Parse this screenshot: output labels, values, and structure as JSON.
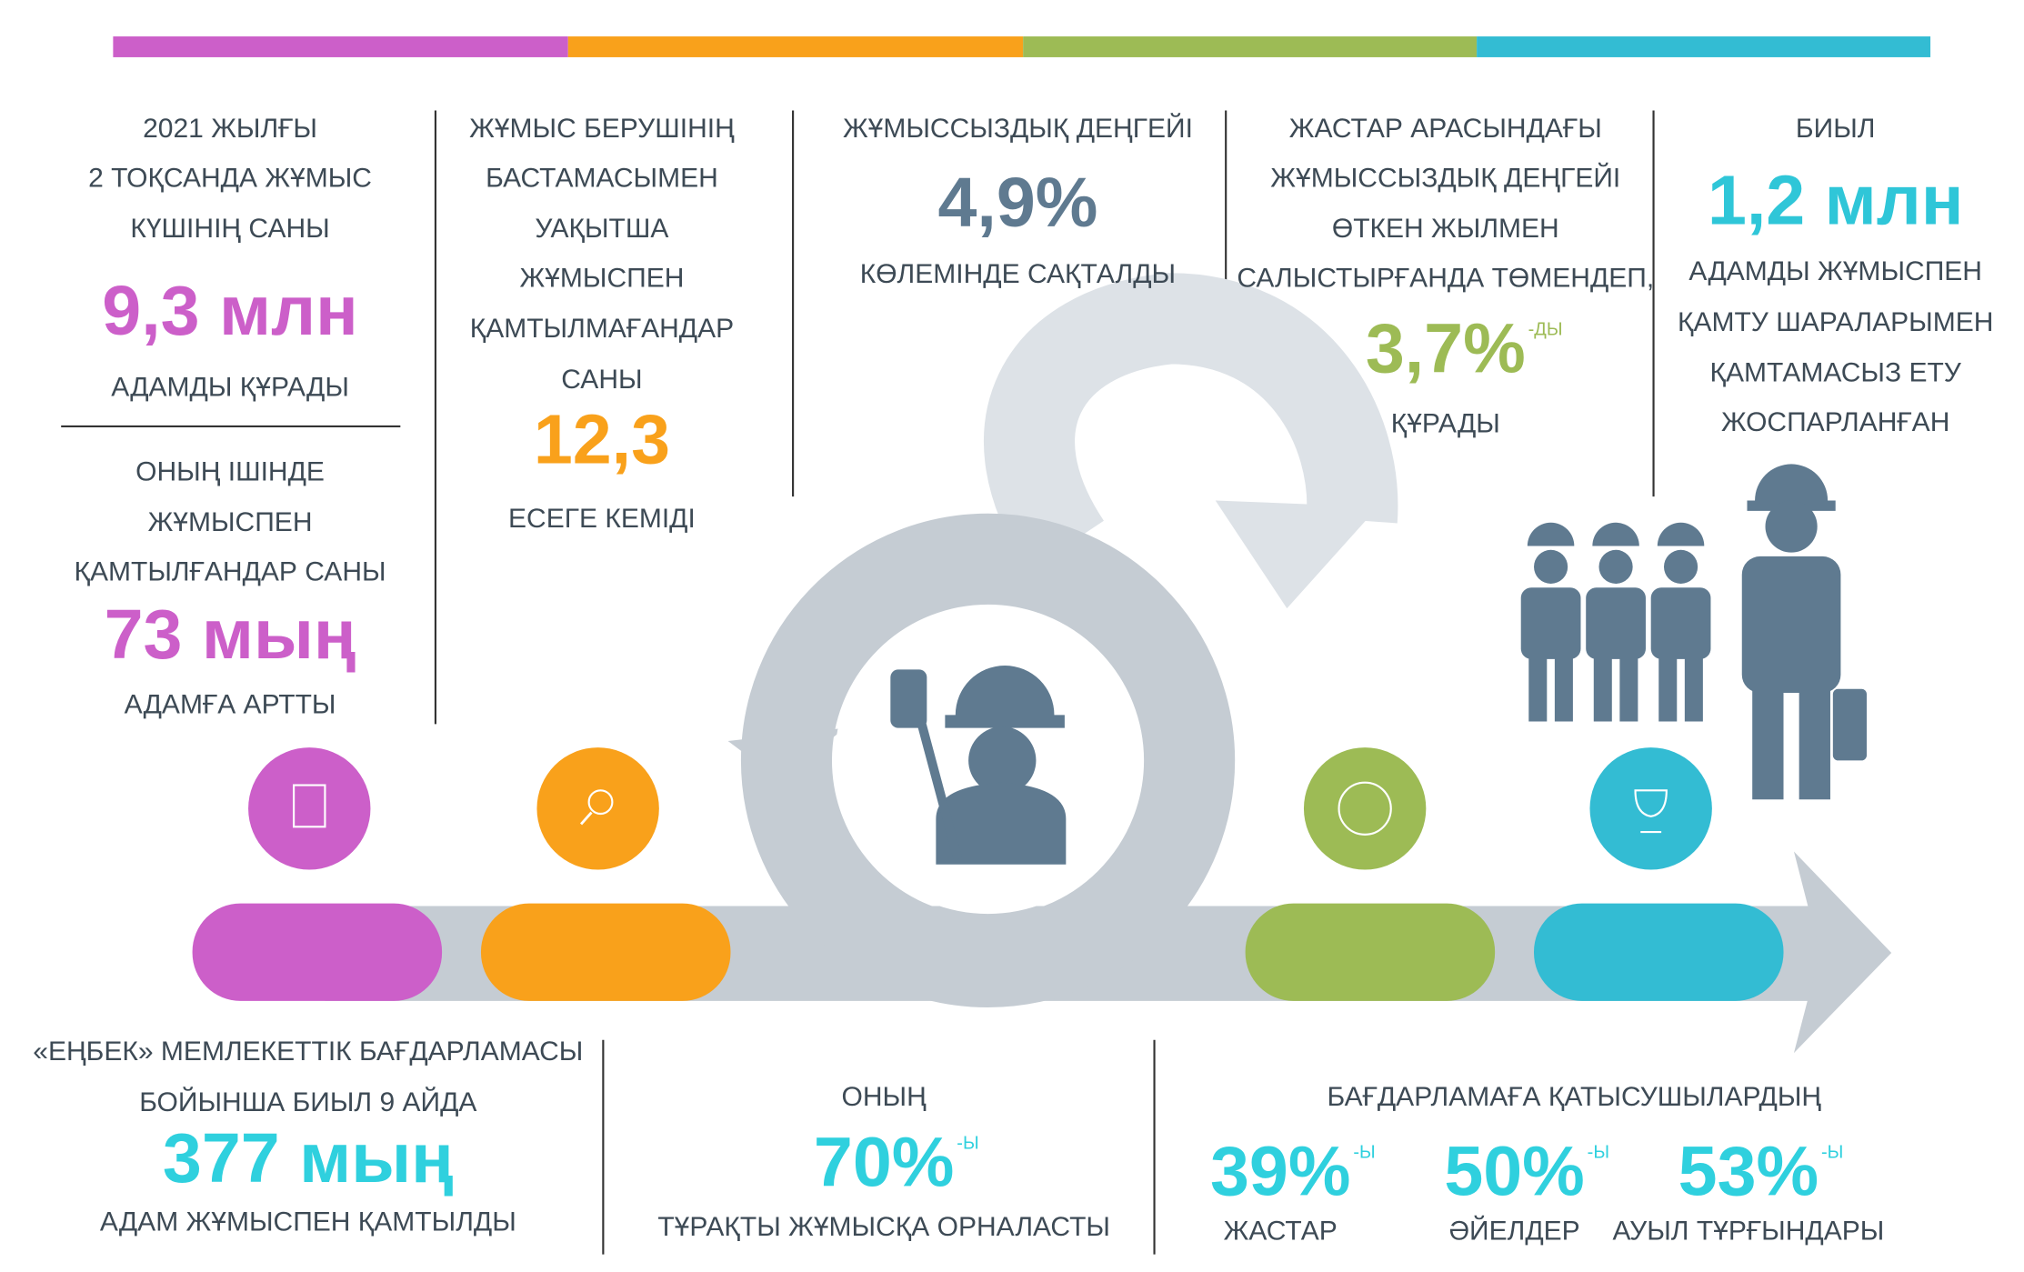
{
  "labour_force": {
    "lead": [
      "2021 ЖЫЛҒЫ",
      "2 ТОҚСАНДА ЖҰМЫС",
      "КҮШІНІҢ САНЫ"
    ],
    "figure": "9,3 млн",
    "tail": "АДАМДЫ ҚҰРАДЫ"
  },
  "employed": {
    "lead": [
      "ОНЫҢ ІШІНДЕ",
      "ЖҰМЫСПЕН",
      "ҚАМТЫЛҒАНДАР САНЫ"
    ],
    "figure": "73 мың",
    "tail": "АДАМҒА АРТТЫ"
  },
  "temporarily_unemployed": {
    "lead": [
      "ЖҰМЫС БЕРУШІНІҢ",
      "БАСТАМАСЫМЕН",
      "УАҚЫТША",
      "ЖҰМЫСПЕН",
      "ҚАМТЫЛМАҒАНДАР",
      "САНЫ"
    ],
    "figure": "12,3",
    "tail": "ЕСЕГЕ КЕМІДІ"
  },
  "unemployment": {
    "lead": [
      "ЖҰМЫССЫЗДЫҚ ДЕҢГЕЙІ"
    ],
    "figure": "4,9%",
    "tail": "КӨЛЕМІНДЕ САҚТАЛДЫ"
  },
  "youth_unemployment": {
    "lead": [
      "ЖАСТАР АРАСЫНДАҒЫ",
      "ЖҰМЫССЫЗДЫҚ ДЕҢГЕЙІ",
      "ӨТКЕН ЖЫЛМЕН",
      "САЛЫСТЫРҒАНДА ТӨМЕНДЕП,"
    ],
    "figure": "3,7%",
    "suffix": "-ДЫ",
    "tail": "ҚҰРАДЫ"
  },
  "planned": {
    "lead": [
      "БИЫЛ"
    ],
    "figure": "1,2 млн",
    "tail": [
      "АДАМДЫ ЖҰМЫСПЕН",
      "ҚАМТУ ШАРАЛАРЫМЕН",
      "ҚАМТАМАСЫЗ ЕТУ",
      "ЖОСПАРЛАНҒАН"
    ]
  },
  "enbek": {
    "lead": [
      "«ЕҢБЕК» МЕМЛЕКЕТТІК БАҒДАРЛАМАСЫ",
      "БОЙЫНША БИЫЛ 9 АЙДА"
    ],
    "figure": "377 мың",
    "tail": "АДАМ ЖҰМЫСПЕН ҚАМТЫЛДЫ"
  },
  "permanent": {
    "lead": [
      "ОНЫҢ"
    ],
    "figure": "70%",
    "suffix": "-Ы",
    "tail": "ТҰРАҚТЫ ЖҰМЫСҚА ОРНАЛАСТЫ"
  },
  "participants": {
    "title": "БАҒДАРЛАМАҒА ҚАТЫСУШЫЛАРДЫҢ",
    "groups": [
      {
        "figure": "39%",
        "suffix": "-Ы",
        "label": "ЖАСТАР"
      },
      {
        "figure": "50%",
        "suffix": "-Ы",
        "label": "ӘЙЕЛДЕР"
      },
      {
        "figure": "53%",
        "suffix": "-Ы",
        "label": "АУЫЛ ТҰРҒЫНДАРЫ"
      }
    ]
  }
}
